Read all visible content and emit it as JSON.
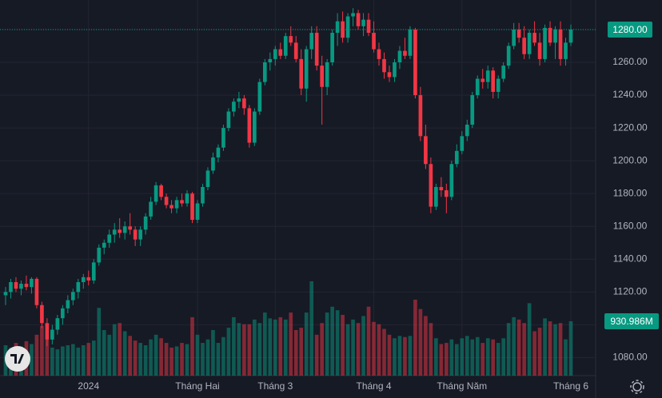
{
  "chart_data": {
    "type": "candlestick",
    "categories": [
      null,
      null,
      null,
      null,
      null,
      null,
      null,
      null,
      null,
      null,
      null,
      null,
      null,
      null,
      null,
      null,
      "2024",
      null,
      null,
      null,
      null,
      null,
      null,
      null,
      null,
      null,
      null,
      null,
      null,
      null,
      null,
      null,
      null,
      null,
      null,
      null,
      null,
      "Tháng Hai",
      null,
      null,
      null,
      null,
      null,
      null,
      null,
      null,
      null,
      null,
      null,
      null,
      null,
      null,
      "Tháng 3",
      null,
      null,
      null,
      null,
      null,
      null,
      null,
      null,
      null,
      null,
      null,
      null,
      null,
      null,
      null,
      null,
      null,
      null,
      "Tháng 4",
      null,
      null,
      null,
      null,
      null,
      null,
      null,
      null,
      null,
      null,
      null,
      null,
      null,
      null,
      null,
      null,
      "Tháng Năm",
      null,
      null,
      null,
      null,
      null,
      null,
      null,
      null,
      null,
      null,
      null,
      null,
      null,
      null,
      null,
      null,
      null,
      null,
      null,
      null,
      "Tháng 6"
    ],
    "open": [
      1118,
      1120,
      1126,
      1122,
      1125,
      1123,
      1128,
      1112,
      1101,
      1091,
      1097,
      1104,
      1110,
      1115,
      1120,
      1126,
      1129,
      1127,
      1138,
      1147,
      1150,
      1155,
      1158,
      1156,
      1160,
      1158,
      1152,
      1158,
      1166,
      1175,
      1185,
      1178,
      1173,
      1171,
      1176,
      1174,
      1180,
      1164,
      1174,
      1184,
      1194,
      1202,
      1208,
      1220,
      1230,
      1236,
      1238,
      1232,
      1211,
      1230,
      1248,
      1260,
      1262,
      1268,
      1264,
      1276,
      1272,
      1262,
      1244,
      1268,
      1278,
      1258,
      1245,
      1260,
      1278,
      1285,
      1275,
      1288,
      1290,
      1282,
      1286,
      1278,
      1268,
      1262,
      1254,
      1251,
      1260,
      1267,
      1264,
      1280,
      1240,
      1215,
      1198,
      1172,
      1184,
      1182,
      1178,
      1198,
      1206,
      1215,
      1222,
      1240,
      1250,
      1248,
      1255,
      1242,
      1250,
      1258,
      1270,
      1280,
      1275,
      1265,
      1278,
      1272,
      1262,
      1281,
      1272,
      1280,
      1262,
      1272
    ],
    "high": [
      1123,
      1128,
      1129,
      1127,
      1130,
      1129,
      1129,
      1114,
      1104,
      1100,
      1106,
      1112,
      1118,
      1122,
      1128,
      1131,
      1133,
      1140,
      1149,
      1152,
      1158,
      1162,
      1165,
      1163,
      1168,
      1160,
      1160,
      1168,
      1178,
      1187,
      1186,
      1180,
      1176,
      1178,
      1180,
      1182,
      1181,
      1176,
      1186,
      1196,
      1205,
      1210,
      1222,
      1232,
      1238,
      1242,
      1240,
      1234,
      1232,
      1250,
      1262,
      1266,
      1270,
      1272,
      1278,
      1282,
      1276,
      1268,
      1270,
      1282,
      1282,
      1264,
      1262,
      1280,
      1290,
      1291,
      1290,
      1293,
      1292,
      1290,
      1290,
      1285,
      1272,
      1266,
      1258,
      1262,
      1270,
      1275,
      1282,
      1281,
      1245,
      1222,
      1202,
      1186,
      1190,
      1186,
      1200,
      1210,
      1218,
      1225,
      1242,
      1252,
      1256,
      1258,
      1257,
      1252,
      1260,
      1272,
      1284,
      1284,
      1282,
      1280,
      1285,
      1278,
      1283,
      1285,
      1282,
      1285,
      1275,
      1283
    ],
    "low": [
      1112,
      1116,
      1120,
      1118,
      1121,
      1119,
      1110,
      1098,
      1087,
      1088,
      1094,
      1100,
      1107,
      1112,
      1116,
      1122,
      1124,
      1125,
      1136,
      1143,
      1147,
      1150,
      1153,
      1152,
      1155,
      1148,
      1148,
      1155,
      1164,
      1173,
      1176,
      1171,
      1168,
      1168,
      1172,
      1172,
      1162,
      1162,
      1172,
      1182,
      1192,
      1199,
      1206,
      1218,
      1227,
      1232,
      1228,
      1208,
      1209,
      1228,
      1246,
      1255,
      1258,
      1262,
      1262,
      1270,
      1260,
      1240,
      1236,
      1262,
      1255,
      1222,
      1240,
      1258,
      1270,
      1272,
      1272,
      1282,
      1280,
      1276,
      1276,
      1266,
      1258,
      1250,
      1248,
      1248,
      1256,
      1262,
      1262,
      1238,
      1212,
      1195,
      1168,
      1170,
      1178,
      1168,
      1176,
      1196,
      1204,
      1212,
      1220,
      1238,
      1244,
      1244,
      1238,
      1238,
      1248,
      1256,
      1268,
      1272,
      1262,
      1262,
      1270,
      1258,
      1260,
      1270,
      1262,
      1258,
      1258,
      1270
    ],
    "close": [
      1120,
      1126,
      1122,
      1125,
      1123,
      1128,
      1112,
      1101,
      1091,
      1097,
      1104,
      1110,
      1115,
      1120,
      1126,
      1129,
      1127,
      1138,
      1147,
      1150,
      1155,
      1158,
      1156,
      1160,
      1158,
      1152,
      1158,
      1166,
      1175,
      1185,
      1178,
      1173,
      1171,
      1176,
      1174,
      1180,
      1164,
      1174,
      1184,
      1194,
      1202,
      1208,
      1220,
      1230,
      1236,
      1238,
      1232,
      1211,
      1230,
      1248,
      1260,
      1262,
      1268,
      1264,
      1276,
      1272,
      1262,
      1244,
      1268,
      1278,
      1258,
      1245,
      1260,
      1278,
      1285,
      1275,
      1288,
      1290,
      1282,
      1286,
      1278,
      1268,
      1262,
      1254,
      1251,
      1260,
      1267,
      1264,
      1280,
      1240,
      1215,
      1198,
      1172,
      1184,
      1182,
      1178,
      1198,
      1206,
      1215,
      1222,
      1240,
      1250,
      1248,
      1255,
      1242,
      1250,
      1258,
      1270,
      1280,
      1275,
      1265,
      1278,
      1272,
      1262,
      1281,
      1272,
      1280,
      1262,
      1272,
      1280
    ],
    "volume": [
      520,
      480,
      560,
      500,
      590,
      540,
      700,
      850,
      620,
      480,
      450,
      500,
      520,
      540,
      480,
      520,
      560,
      600,
      1160,
      780,
      700,
      880,
      900,
      760,
      680,
      600,
      560,
      520,
      620,
      700,
      640,
      560,
      480,
      500,
      560,
      540,
      1000,
      700,
      560,
      620,
      780,
      560,
      660,
      820,
      1000,
      900,
      880,
      880,
      960,
      900,
      1080,
      980,
      960,
      1000,
      960,
      1080,
      780,
      820,
      1080,
      1615,
      700,
      900,
      1080,
      1180,
      1120,
      1040,
      880,
      960,
      900,
      1020,
      1180,
      920,
      880,
      800,
      700,
      640,
      680,
      660,
      680,
      1300,
      1140,
      1020,
      900,
      640,
      540,
      560,
      620,
      540,
      640,
      680,
      620,
      660,
      560,
      640,
      620,
      560,
      640,
      900,
      1000,
      960,
      900,
      1240,
      760,
      820,
      980,
      930,
      880,
      900,
      620,
      930.986
    ],
    "ylim": [
      1069,
      1298
    ],
    "yticks": [
      {
        "value": 1080,
        "label": "1080.00"
      },
      {
        "value": 1100,
        "label": "1100.00"
      },
      {
        "value": 1120,
        "label": "1120.00"
      },
      {
        "value": 1140,
        "label": "1140.00"
      },
      {
        "value": 1160,
        "label": "1160.00"
      },
      {
        "value": 1180,
        "label": "1180.00"
      },
      {
        "value": 1200,
        "label": "1200.00"
      },
      {
        "value": 1220,
        "label": "1220.00"
      },
      {
        "value": 1240,
        "label": "1240.00"
      },
      {
        "value": 1260,
        "label": "1260.00"
      },
      {
        "value": 1280,
        "label": "1280.00"
      }
    ],
    "volume_ylim": [
      0,
      6430
    ],
    "last_close_label": "1280.00",
    "last_volume_label": "930.986M",
    "up_color": "#089981",
    "down_color": "#f23645",
    "grid": true
  }
}
